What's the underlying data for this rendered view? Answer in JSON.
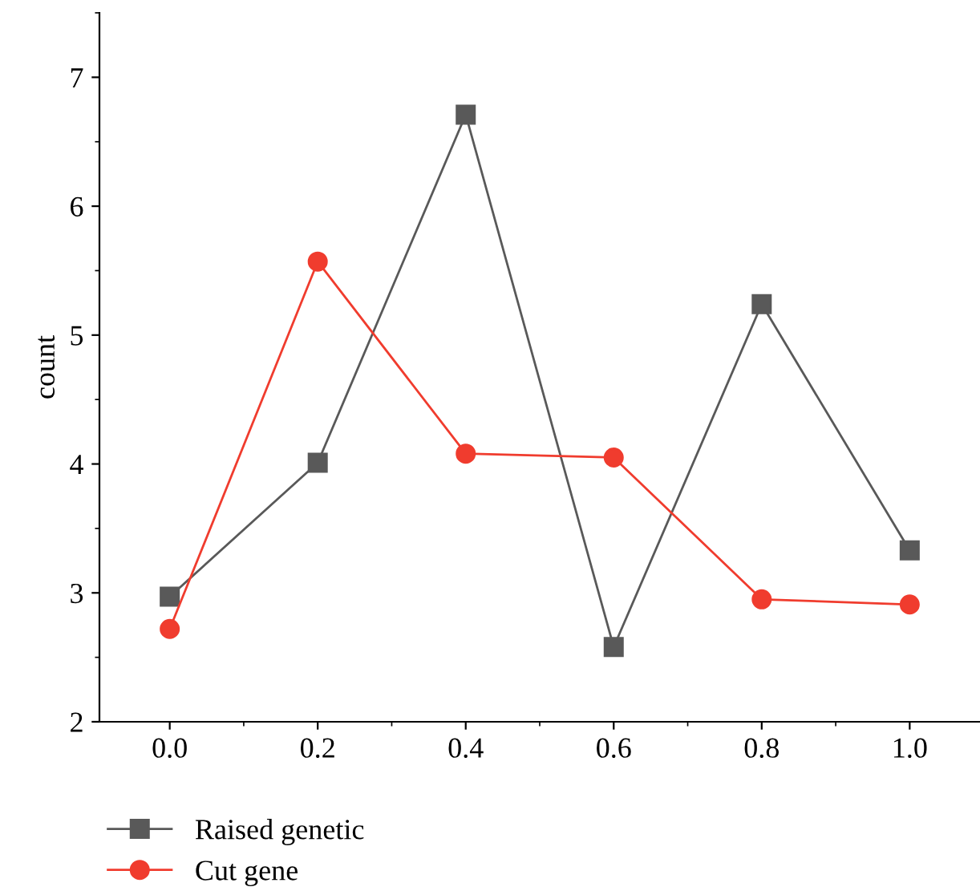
{
  "chart_data": {
    "type": "line",
    "ylabel": "count",
    "x": [
      0.0,
      0.2,
      0.4,
      0.6,
      0.8,
      1.0
    ],
    "series": [
      {
        "name": "Raised genetic",
        "color": "#595959",
        "marker": "square",
        "values": [
          2.97,
          4.01,
          6.71,
          2.58,
          5.24,
          3.33
        ]
      },
      {
        "name": "Cut gene",
        "color": "#f03c2e",
        "marker": "circle",
        "values": [
          2.72,
          5.57,
          4.08,
          4.05,
          2.95,
          2.91
        ]
      }
    ],
    "xlim": [
      -0.095,
      1.095
    ],
    "ylim": [
      2,
      7.5
    ],
    "xticks": [
      {
        "value": 0.0,
        "label": "0.0"
      },
      0.2,
      0.4,
      0.6,
      0.8,
      {
        "value": 1.0,
        "label": "1.0"
      }
    ],
    "yticks": [
      2,
      3,
      4,
      5,
      6,
      7
    ],
    "grid": false,
    "legend": "bottom left",
    "line_style": "solid"
  }
}
